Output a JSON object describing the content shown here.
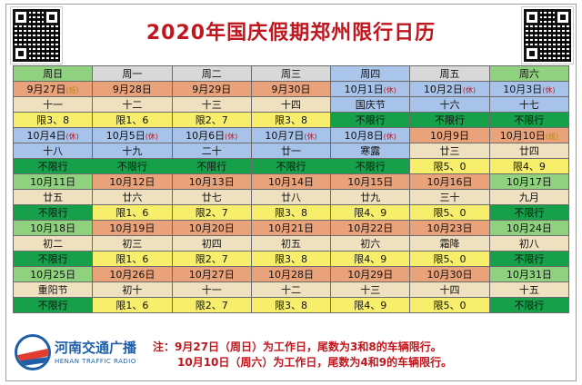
{
  "title": "2020年国庆假期郑州限行日历",
  "headers": [
    "周日",
    "周一",
    "周二",
    "周三",
    "周四",
    "周五",
    "周六"
  ],
  "weeks": [
    [
      {
        "date": "9月27日",
        "mark": "(班)",
        "lunar": "十一",
        "rule": "限3、8"
      },
      {
        "date": "9月28日",
        "mark": "",
        "lunar": "十二",
        "rule": "限1、6"
      },
      {
        "date": "9月29日",
        "mark": "",
        "lunar": "十三",
        "rule": "限2、7"
      },
      {
        "date": "9月30日",
        "mark": "",
        "lunar": "十四",
        "rule": "限3、8"
      },
      {
        "date": "10月1日",
        "mark": "(休)",
        "lunar": "国庆节",
        "rule": "不限行"
      },
      {
        "date": "10月2日",
        "mark": "(休)",
        "lunar": "十六",
        "rule": "不限行"
      },
      {
        "date": "10月3日",
        "mark": "(休)",
        "lunar": "十七",
        "rule": "不限行"
      }
    ],
    [
      {
        "date": "10月4日",
        "mark": "(休)",
        "lunar": "十八",
        "rule": "不限行"
      },
      {
        "date": "10月5日",
        "mark": "(休)",
        "lunar": "十九",
        "rule": "不限行"
      },
      {
        "date": "10月6日",
        "mark": "(休)",
        "lunar": "二十",
        "rule": "不限行"
      },
      {
        "date": "10月7日",
        "mark": "(休)",
        "lunar": "廿一",
        "rule": "不限行"
      },
      {
        "date": "10月8日",
        "mark": "(休)",
        "lunar": "寒露",
        "rule": "不限行"
      },
      {
        "date": "10月9日",
        "mark": "",
        "lunar": "廿三",
        "rule": "限5、0"
      },
      {
        "date": "10月10日",
        "mark": "(班)",
        "lunar": "廿四",
        "rule": "限4、9"
      }
    ],
    [
      {
        "date": "10月11日",
        "mark": "",
        "lunar": "廿五",
        "rule": "不限行"
      },
      {
        "date": "10月12日",
        "mark": "",
        "lunar": "廿六",
        "rule": "限1、6"
      },
      {
        "date": "10月13日",
        "mark": "",
        "lunar": "廿七",
        "rule": "限2、7"
      },
      {
        "date": "10月14日",
        "mark": "",
        "lunar": "廿八",
        "rule": "限3、8"
      },
      {
        "date": "10月15日",
        "mark": "",
        "lunar": "廿九",
        "rule": "限4、9"
      },
      {
        "date": "10月16日",
        "mark": "",
        "lunar": "三十",
        "rule": "限5、0"
      },
      {
        "date": "10月17日",
        "mark": "",
        "lunar": "九月",
        "rule": "不限行"
      }
    ],
    [
      {
        "date": "10月18日",
        "mark": "",
        "lunar": "初二",
        "rule": "不限行"
      },
      {
        "date": "10月19日",
        "mark": "",
        "lunar": "初三",
        "rule": "限1、6"
      },
      {
        "date": "10月20日",
        "mark": "",
        "lunar": "初四",
        "rule": "限2、7"
      },
      {
        "date": "10月21日",
        "mark": "",
        "lunar": "初五",
        "rule": "限3、8"
      },
      {
        "date": "10月22日",
        "mark": "",
        "lunar": "初六",
        "rule": "限4、9"
      },
      {
        "date": "10月23日",
        "mark": "",
        "lunar": "霜降",
        "rule": "限5、0"
      },
      {
        "date": "10月24日",
        "mark": "",
        "lunar": "初八",
        "rule": "不限行"
      }
    ],
    [
      {
        "date": "10月25日",
        "mark": "",
        "lunar": "重阳节",
        "rule": "不限行"
      },
      {
        "date": "10月26日",
        "mark": "",
        "lunar": "初十",
        "rule": "限1、6"
      },
      {
        "date": "10月27日",
        "mark": "",
        "lunar": "十一",
        "rule": "限2、7"
      },
      {
        "date": "10月28日",
        "mark": "",
        "lunar": "十二",
        "rule": "限3、8"
      },
      {
        "date": "10月29日",
        "mark": "",
        "lunar": "十三",
        "rule": "限4、9"
      },
      {
        "date": "10月30日",
        "mark": "",
        "lunar": "十四",
        "rule": "限5、0"
      },
      {
        "date": "10月31日",
        "mark": "",
        "lunar": "十五",
        "rule": "不限行"
      }
    ]
  ],
  "note_line1": "注：9月27日（周日）为工作日，尾数为3和8的车辆限行。",
  "note_line2": "10月10日（周六）为工作日，尾数为4和9的车辆限行。",
  "logo": {
    "cn": "河南交通广播",
    "en": "HENAN TRAFFIC RADIO",
    "icon": "radio-logo-icon"
  },
  "colors": {
    "title": "#c0161e",
    "green": "#17a04a",
    "yellow": "#f7ef6b",
    "orange": "#e9a27a",
    "blue": "#a8c3ea"
  }
}
